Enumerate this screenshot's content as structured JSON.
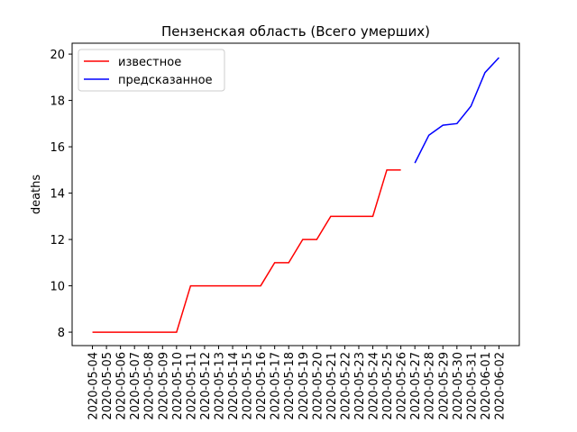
{
  "chart_data": {
    "type": "line",
    "title": "Пензенская область (Всего умерших)",
    "y_label": "deaths",
    "categories": [
      "2020-05-04",
      "2020-05-05",
      "2020-05-06",
      "2020-05-07",
      "2020-05-08",
      "2020-05-09",
      "2020-05-10",
      "2020-05-11",
      "2020-05-12",
      "2020-05-13",
      "2020-05-14",
      "2020-05-15",
      "2020-05-16",
      "2020-05-17",
      "2020-05-18",
      "2020-05-19",
      "2020-05-20",
      "2020-05-21",
      "2020-05-22",
      "2020-05-23",
      "2020-05-24",
      "2020-05-25",
      "2020-05-26",
      "2020-05-27",
      "2020-05-28",
      "2020-05-29",
      "2020-05-30",
      "2020-05-31",
      "2020-06-01",
      "2020-06-02"
    ],
    "series": [
      {
        "name": "известное",
        "color": "#ff0000",
        "values": [
          8,
          8,
          8,
          8,
          8,
          8,
          8,
          10,
          10,
          10,
          10,
          10,
          10,
          11,
          11,
          12,
          12,
          13,
          13,
          13,
          13,
          15,
          15,
          null,
          null,
          null,
          null,
          null,
          null,
          null
        ]
      },
      {
        "name": "предсказанное",
        "color": "#0000ff",
        "values": [
          null,
          null,
          null,
          null,
          null,
          null,
          null,
          null,
          null,
          null,
          null,
          null,
          null,
          null,
          null,
          null,
          null,
          null,
          null,
          null,
          null,
          null,
          null,
          15.3,
          16.5,
          16.93,
          17.0,
          17.75,
          19.2,
          19.85
        ]
      }
    ],
    "ylim": [
      7.42,
      20.47
    ],
    "yticks": [
      8,
      10,
      12,
      14,
      16,
      18,
      20
    ],
    "legend": "upper left"
  }
}
